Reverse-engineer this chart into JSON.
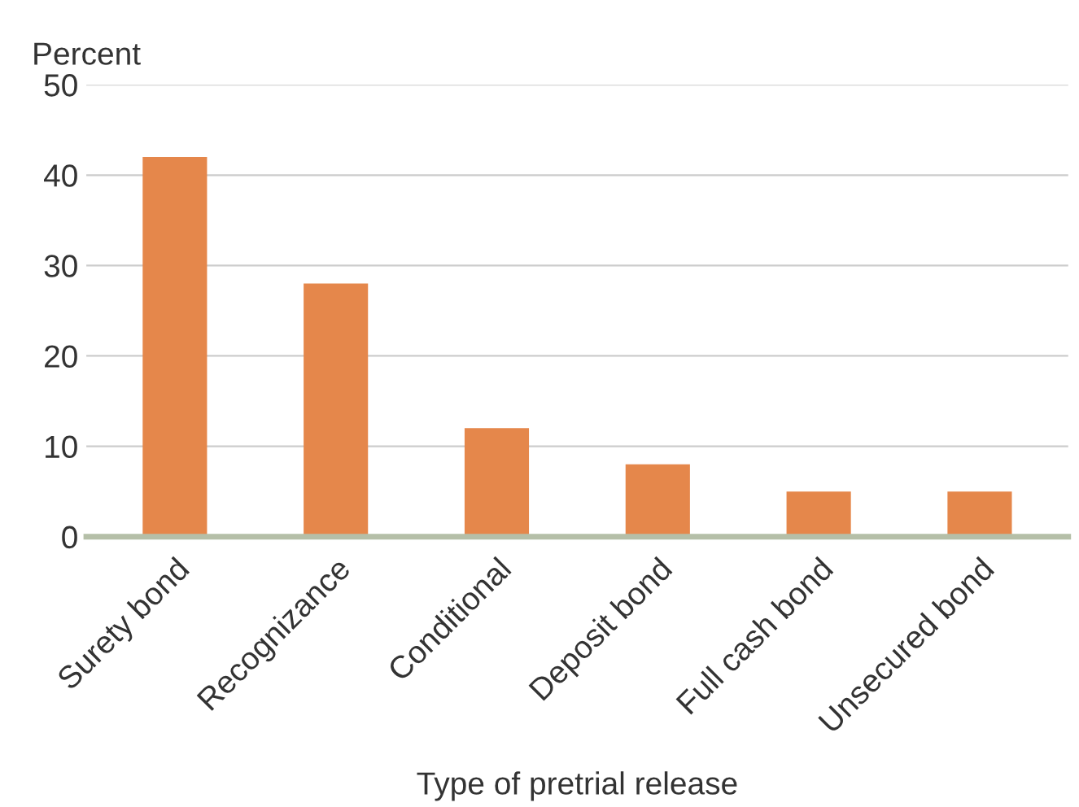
{
  "chart_data": {
    "type": "bar",
    "ylabel": "Percent",
    "xlabel": "Type of pretrial release",
    "categories": [
      "Surety bond",
      "Recognizance",
      "Conditional",
      "Deposit bond",
      "Full cash bond",
      "Unsecured bond"
    ],
    "values": [
      42,
      28,
      12,
      8,
      5,
      5
    ],
    "color": "#e5874b",
    "ylim": [
      0,
      50
    ],
    "yticks": [
      0,
      10,
      20,
      30,
      40,
      50
    ],
    "grid": "y"
  }
}
